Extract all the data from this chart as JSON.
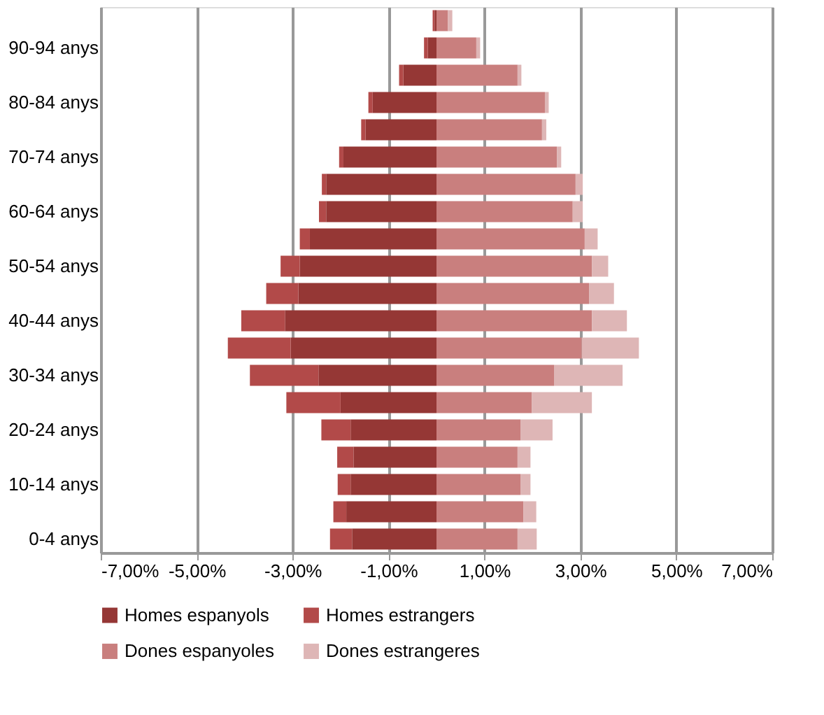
{
  "chart_data": {
    "type": "bar",
    "orientation": "horizontal",
    "stacked": true,
    "categories": [
      null,
      "90-94 anys",
      null,
      "80-84 anys",
      null,
      "70-74 anys",
      null,
      "60-64 anys",
      null,
      "50-54 anys",
      null,
      "40-44 anys",
      null,
      "30-34 anys",
      null,
      "20-24 anys",
      null,
      "10-14 anys",
      null,
      "0-4 anys"
    ],
    "series": [
      {
        "name": "Homes espanyols",
        "color": "#953735",
        "values": [
          -0.04,
          -0.18,
          -0.69,
          -1.33,
          -1.48,
          -1.94,
          -2.3,
          -2.3,
          -2.64,
          -2.85,
          -2.88,
          -3.16,
          -3.04,
          -2.46,
          -2.0,
          -1.79,
          -1.73,
          -1.79,
          -1.88,
          -1.76
        ]
      },
      {
        "name": "Homes estrangers",
        "color": "#b24a49",
        "values": [
          -0.04,
          -0.08,
          -0.09,
          -0.09,
          -0.09,
          -0.09,
          -0.09,
          -0.15,
          -0.21,
          -0.4,
          -0.67,
          -0.91,
          -1.31,
          -1.43,
          -1.13,
          -0.61,
          -0.34,
          -0.27,
          -0.27,
          -0.46
        ]
      },
      {
        "name": "Dones espanyoles",
        "color": "#c97f7e",
        "values": [
          0.24,
          0.83,
          1.69,
          2.26,
          2.2,
          2.51,
          2.9,
          2.84,
          3.09,
          3.24,
          3.18,
          3.24,
          3.03,
          2.45,
          1.99,
          1.75,
          1.69,
          1.75,
          1.81,
          1.69
        ]
      },
      {
        "name": "Dones estrangeres",
        "color": "#deb6b6",
        "values": [
          0.09,
          0.08,
          0.08,
          0.08,
          0.09,
          0.09,
          0.15,
          0.21,
          0.27,
          0.34,
          0.52,
          0.73,
          1.19,
          1.43,
          1.25,
          0.67,
          0.27,
          0.21,
          0.27,
          0.4
        ]
      }
    ],
    "xlim": [
      -7,
      7
    ],
    "xticks": [
      {
        "value": -7,
        "label": "-7,00%"
      },
      {
        "value": -5,
        "label": "-5,00%"
      },
      {
        "value": -3,
        "label": "-3,00%"
      },
      {
        "value": -1,
        "label": "-1,00%"
      },
      {
        "value": 1,
        "label": "1,00%"
      },
      {
        "value": 3,
        "label": "3,00%"
      },
      {
        "value": 5,
        "label": "5,00%"
      },
      {
        "value": 7,
        "label": "7,00%"
      }
    ],
    "grid": "x",
    "legend": "bottom"
  }
}
